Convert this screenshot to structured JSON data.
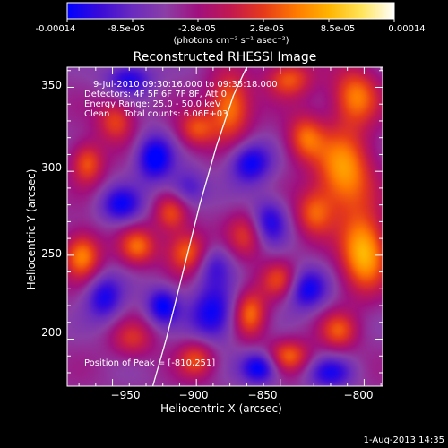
{
  "colorbar": {
    "tick_labels": [
      "-0.00014",
      "-8.5e-05",
      "-2.8e-05",
      "2.8e-05",
      "8.5e-05",
      "0.00014"
    ],
    "units_label": "(photons cm⁻² s⁻¹ asec⁻²)",
    "colors": [
      "#0000ff",
      "#3a0bd8",
      "#6a2bbe",
      "#8b3ea6",
      "#a0107e",
      "#c2184f",
      "#e63a1a",
      "#ff7a00",
      "#ffb400",
      "#ffe45a",
      "#ffffff"
    ]
  },
  "title": "Reconstructed RHESSI Image",
  "annotations": {
    "time": "9-Jul-2010 09:30:16.000 to 09:35:18.000",
    "detectors": "Detectors: 4F 5F 6F 7F 8F, Att 0",
    "energy": "Energy Range: 25.0 - 50.0 keV",
    "clean": "Clean     Total counts: 6.06E+03",
    "peak": "Position of Peak = [-810,251]"
  },
  "footer_date": "1-Aug-2013 14:35",
  "chart_data": {
    "type": "heatmap",
    "title": "Reconstructed RHESSI Image",
    "xlabel": "Heliocentric X (arcsec)",
    "ylabel": "Heliocentric Y (arcsec)",
    "xlim": [
      -977,
      -789
    ],
    "ylim": [
      172,
      362
    ],
    "x_ticks": [
      -950,
      -900,
      -850,
      -800
    ],
    "y_ticks": [
      200,
      250,
      300,
      350
    ],
    "x_tick_labels": [
      "−950",
      "−900",
      "−850",
      "−800"
    ],
    "y_tick_labels": [
      "200",
      "250",
      "300",
      "350"
    ],
    "colorbar_range": [
      -0.00014,
      0.00014
    ],
    "peak_position": [
      -810,
      251
    ],
    "limb_curve": {
      "x": [
        -926,
        -918,
        -908,
        -898,
        -888,
        -878,
        -870
      ],
      "y": [
        172,
        200,
        240,
        280,
        315,
        345,
        362
      ]
    },
    "blobs": [
      {
        "x": -800,
        "y": 252,
        "v": 0.000135,
        "sx": 10,
        "sy": 16
      },
      {
        "x": -812,
        "y": 300,
        "v": 0.00012,
        "sx": 12,
        "sy": 18
      },
      {
        "x": -805,
        "y": 345,
        "v": 0.0001,
        "sx": 10,
        "sy": 12
      },
      {
        "x": -835,
        "y": 320,
        "v": 9e-05,
        "sx": 8,
        "sy": 10
      },
      {
        "x": -830,
        "y": 275,
        "v": 8e-05,
        "sx": 8,
        "sy": 10
      },
      {
        "x": -845,
        "y": 355,
        "v": 9e-05,
        "sx": 10,
        "sy": 8
      },
      {
        "x": -850,
        "y": 235,
        "v": 8e-05,
        "sx": 8,
        "sy": 8
      },
      {
        "x": -868,
        "y": 215,
        "v": 0.0001,
        "sx": 7,
        "sy": 10
      },
      {
        "x": -845,
        "y": 190,
        "v": 9e-05,
        "sx": 9,
        "sy": 7
      },
      {
        "x": -815,
        "y": 205,
        "v": 8e-05,
        "sx": 8,
        "sy": 8
      },
      {
        "x": -905,
        "y": 252,
        "v": 0.0001,
        "sx": 9,
        "sy": 9
      },
      {
        "x": -915,
        "y": 275,
        "v": 8e-05,
        "sx": 7,
        "sy": 8
      },
      {
        "x": -935,
        "y": 255,
        "v": 9e-05,
        "sx": 8,
        "sy": 8
      },
      {
        "x": -968,
        "y": 250,
        "v": 0.00011,
        "sx": 8,
        "sy": 10
      },
      {
        "x": -965,
        "y": 305,
        "v": 9e-05,
        "sx": 7,
        "sy": 9
      },
      {
        "x": -948,
        "y": 330,
        "v": 8e-05,
        "sx": 8,
        "sy": 9
      },
      {
        "x": -880,
        "y": 338,
        "v": 0.00011,
        "sx": 9,
        "sy": 14
      },
      {
        "x": -900,
        "y": 325,
        "v": 8e-05,
        "sx": 8,
        "sy": 8
      },
      {
        "x": -938,
        "y": 200,
        "v": 6e-05,
        "sx": 9,
        "sy": 8
      },
      {
        "x": -900,
        "y": 188,
        "v": 8e-05,
        "sx": 8,
        "sy": 8
      },
      {
        "x": -870,
        "y": 262,
        "v": 7e-05,
        "sx": 8,
        "sy": 10
      },
      {
        "x": -890,
        "y": 215,
        "v": -9e-05,
        "sx": 10,
        "sy": 12
      },
      {
        "x": -925,
        "y": 308,
        "v": -0.0001,
        "sx": 8,
        "sy": 10
      },
      {
        "x": -945,
        "y": 280,
        "v": -8e-05,
        "sx": 9,
        "sy": 8
      },
      {
        "x": -955,
        "y": 225,
        "v": -8e-05,
        "sx": 8,
        "sy": 10
      },
      {
        "x": -920,
        "y": 220,
        "v": -9e-05,
        "sx": 7,
        "sy": 8
      },
      {
        "x": -868,
        "y": 305,
        "v": -9e-05,
        "sx": 9,
        "sy": 9
      },
      {
        "x": -857,
        "y": 270,
        "v": -8e-05,
        "sx": 8,
        "sy": 10
      },
      {
        "x": -835,
        "y": 230,
        "v": -9e-05,
        "sx": 9,
        "sy": 9
      },
      {
        "x": -820,
        "y": 180,
        "v": -7e-05,
        "sx": 10,
        "sy": 7
      },
      {
        "x": -940,
        "y": 355,
        "v": -8e-05,
        "sx": 10,
        "sy": 7
      },
      {
        "x": -862,
        "y": 183,
        "v": -0.0001,
        "sx": 8,
        "sy": 7
      },
      {
        "x": -905,
        "y": 290,
        "v": -6e-05,
        "sx": 8,
        "sy": 8
      },
      {
        "x": -890,
        "y": 245,
        "v": -6e-05,
        "sx": 8,
        "sy": 9
      }
    ]
  }
}
